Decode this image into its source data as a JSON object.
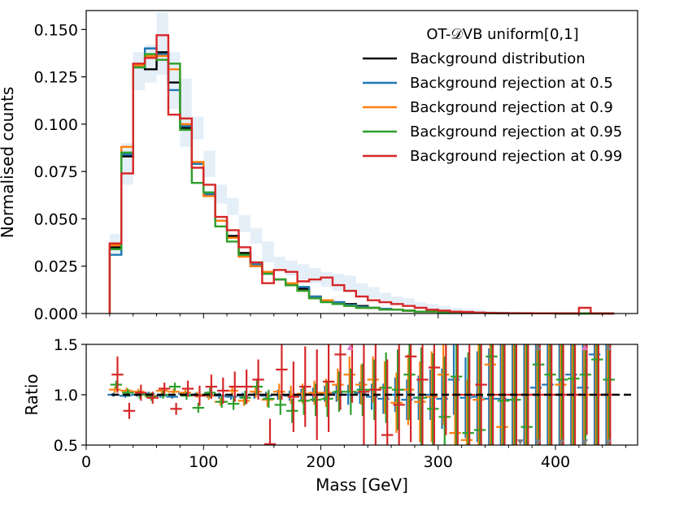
{
  "chart_data": {
    "type": "histogram",
    "xlabel": "Mass [GeV]",
    "xlim": [
      0,
      470
    ],
    "x_ticks": [
      "0",
      "100",
      "200",
      "300",
      "400"
    ],
    "bin_edges": [
      20,
      30,
      40,
      50,
      60,
      70,
      80,
      90,
      100,
      110,
      120,
      130,
      140,
      150,
      160,
      170,
      180,
      190,
      200,
      210,
      220,
      230,
      240,
      250,
      260,
      270,
      280,
      290,
      300,
      310,
      320,
      330,
      340,
      350,
      360,
      370,
      380,
      390,
      400,
      410,
      420,
      430,
      440,
      450
    ],
    "main": {
      "ylabel": "Normalised counts",
      "ylim": [
        0,
        0.16
      ],
      "y_ticks": [
        "0.000",
        "0.025",
        "0.050",
        "0.075",
        "0.100",
        "0.125",
        "0.150"
      ],
      "uncertainty_band": {
        "color": "#c6dbef",
        "lower": [
          0.032,
          0.068,
          0.118,
          0.122,
          0.126,
          0.108,
          0.088,
          0.092,
          0.072,
          0.058,
          0.052,
          0.043,
          0.037,
          0.027,
          0.024,
          0.02,
          0.018,
          0.016,
          0.014,
          0.012,
          0.011,
          0.009,
          0.008,
          0.006,
          0.005,
          0.004,
          0.003,
          0.0025,
          0.002,
          0.0015,
          0.001,
          0.0008,
          0.0005,
          0.0003,
          0.0002,
          0.0001,
          0.0001,
          0,
          0,
          0,
          0,
          0,
          0
        ],
        "upper": [
          0.042,
          0.09,
          0.138,
          0.142,
          0.159,
          0.138,
          0.124,
          0.104,
          0.086,
          0.068,
          0.061,
          0.052,
          0.045,
          0.038,
          0.03,
          0.028,
          0.026,
          0.024,
          0.022,
          0.021,
          0.02,
          0.016,
          0.014,
          0.011,
          0.009,
          0.008,
          0.006,
          0.005,
          0.004,
          0.003,
          0.0025,
          0.002,
          0.0015,
          0.001,
          0.0008,
          0.0006,
          0.0005,
          0.0004,
          0.0003,
          0.0003,
          0.0003,
          0.0003,
          0.0002
        ]
      }
    },
    "ratio": {
      "ylabel": "Ratio",
      "ylim": [
        0.5,
        1.5
      ],
      "y_ticks": [
        "0.5",
        "1.0",
        "1.5"
      ],
      "reference_line": 1.0
    },
    "legend": {
      "title": "OT-𝒟VB uniform[0,1]",
      "placement": "top-right"
    },
    "series": [
      {
        "name": "Background distribution",
        "color": "#000000",
        "values": [
          0.035,
          0.083,
          0.13,
          0.129,
          0.138,
          0.122,
          0.098,
          0.079,
          0.063,
          0.049,
          0.041,
          0.032,
          0.025,
          0.022,
          0.018,
          0.015,
          0.013,
          0.009,
          0.007,
          0.006,
          0.005,
          0.004,
          0.003,
          0.0025,
          0.002,
          0.0015,
          0.001,
          0.001,
          0.0007,
          0.0005,
          0.0004,
          0.0003,
          0.0002,
          0.0002,
          0.0001,
          0.0001,
          0.0001,
          0.0001,
          0,
          0,
          0,
          0,
          0
        ],
        "ratio": [
          1.0,
          1.0,
          1.0,
          1.0,
          1.0,
          1.0,
          1.0,
          1.0,
          1.0,
          1.0,
          1.0,
          1.0,
          1.0,
          1.0,
          1.0,
          1.0,
          1.0,
          1.0,
          1.0,
          1.0,
          1.0,
          1.0,
          1.0,
          1.0,
          1.0,
          1.0,
          1.0,
          1.0,
          1.0,
          1.0,
          1.0,
          1.0,
          1.0,
          1.0,
          1.0,
          1.0,
          1.0,
          1.0,
          1.0,
          1.0,
          1.0,
          1.0,
          1.0
        ],
        "ratio_err": [
          0,
          0,
          0,
          0,
          0,
          0,
          0,
          0,
          0,
          0,
          0,
          0,
          0,
          0,
          0,
          0,
          0,
          0,
          0,
          0,
          0,
          0,
          0,
          0,
          0,
          0,
          0,
          0,
          0,
          0,
          0,
          0,
          0,
          0,
          0,
          0,
          0,
          0,
          0,
          0,
          0,
          0,
          0
        ]
      },
      {
        "name": "Background rejection at 0.5",
        "color": "#1f77b4",
        "values": [
          0.031,
          0.084,
          0.131,
          0.14,
          0.137,
          0.118,
          0.099,
          0.079,
          0.063,
          0.049,
          0.04,
          0.031,
          0.026,
          0.021,
          0.018,
          0.016,
          0.014,
          0.009,
          0.007,
          0.006,
          0.0045,
          0.0035,
          0.003,
          0.0025,
          0.002,
          0.0015,
          0.001,
          0.001,
          0.0007,
          0.0005,
          0.0004,
          0.0003,
          0.0002,
          0.0002,
          0.0001,
          0.0001,
          0.0001,
          0.0001,
          0,
          0,
          0,
          0,
          0
        ],
        "ratio": [
          1.0,
          0.99,
          1.0,
          1.01,
          0.99,
          0.98,
          1.01,
          1.0,
          1.0,
          0.99,
          0.98,
          0.99,
          1.0,
          0.99,
          1.0,
          0.99,
          1.0,
          1.0,
          1.01,
          1.02,
          1.0,
          1.02,
          0.98,
          0.96,
          1.0,
          0.95,
          0.97,
          1.0,
          0.96,
          1.15,
          0.97,
          0.98,
          0.96,
          0.96,
          0.95,
          1.0,
          1.07,
          1.1,
          1.0,
          1.2,
          1.07,
          1.4,
          1.0
        ],
        "ratio_err": [
          0.02,
          0.02,
          0.02,
          0.02,
          0.02,
          0.02,
          0.02,
          0.02,
          0.03,
          0.03,
          0.03,
          0.03,
          0.04,
          0.04,
          0.05,
          0.05,
          0.06,
          0.07,
          0.08,
          0.09,
          0.1,
          0.11,
          0.13,
          0.15,
          0.17,
          0.2,
          0.22,
          0.25,
          0.3,
          0.35,
          0.4,
          0.45,
          0.5,
          0.6,
          0.7,
          0.8,
          0.9,
          0.9,
          0.9,
          0.9,
          0.9,
          0.9,
          0.9
        ]
      },
      {
        "name": "Background rejection at 0.9",
        "color": "#ff7f0e",
        "values": [
          0.036,
          0.088,
          0.131,
          0.136,
          0.136,
          0.129,
          0.1,
          0.08,
          0.062,
          0.049,
          0.04,
          0.03,
          0.025,
          0.022,
          0.018,
          0.016,
          0.012,
          0.008,
          0.007,
          0.005,
          0.004,
          0.003,
          0.003,
          0.002,
          0.002,
          0.0015,
          0.001,
          0.001,
          0.0006,
          0.0005,
          0.0003,
          0.0003,
          0.0002,
          0.0001,
          0.0001,
          0.0001,
          0.0001,
          0.0001,
          0,
          0,
          0,
          0,
          0
        ],
        "ratio": [
          1.05,
          1.04,
          1.03,
          0.99,
          1.04,
          1.03,
          1.02,
          1.0,
          0.99,
          0.93,
          1.04,
          0.94,
          1.03,
          0.95,
          1.03,
          1.0,
          1.01,
          1.02,
          1.02,
          1.1,
          1.2,
          1.1,
          1.15,
          1.07,
          0.92,
          1.05,
          0.93,
          0.98,
          1.2,
          0.62,
          0.55,
          0.95,
          1.3,
          0.68,
          1.0,
          1.0,
          1.0,
          1.0,
          1.1,
          1.0,
          1.0,
          1.0,
          1.0
        ],
        "ratio_err": [
          0.03,
          0.03,
          0.03,
          0.03,
          0.03,
          0.03,
          0.03,
          0.03,
          0.04,
          0.04,
          0.05,
          0.05,
          0.06,
          0.07,
          0.08,
          0.09,
          0.1,
          0.12,
          0.14,
          0.16,
          0.18,
          0.2,
          0.23,
          0.26,
          0.3,
          0.35,
          0.4,
          0.45,
          0.5,
          0.55,
          0.6,
          0.7,
          0.8,
          0.9,
          0.9,
          0.9,
          0.9,
          0.9,
          0.9,
          0.9,
          0.9,
          0.9,
          0.9
        ]
      },
      {
        "name": "Background rejection at 0.95",
        "color": "#2ca02c",
        "values": [
          0.034,
          0.085,
          0.13,
          0.137,
          0.134,
          0.132,
          0.097,
          0.069,
          0.064,
          0.046,
          0.038,
          0.031,
          0.027,
          0.021,
          0.018,
          0.015,
          0.012,
          0.008,
          0.006,
          0.005,
          0.004,
          0.003,
          0.003,
          0.002,
          0.002,
          0.0015,
          0.001,
          0.001,
          0.0006,
          0.0005,
          0.0003,
          0.0003,
          0.0002,
          0.0001,
          0.0001,
          0.0001,
          0.0001,
          0.0001,
          0,
          0,
          0,
          0,
          0
        ],
        "ratio": [
          1.1,
          1.02,
          1.0,
          0.98,
          1.0,
          1.08,
          0.99,
          0.87,
          1.02,
          0.93,
          0.91,
          0.97,
          1.08,
          0.96,
          0.9,
          0.84,
          0.94,
          0.95,
          0.96,
          1.03,
          1.03,
          1.05,
          1.05,
          1.07,
          1.05,
          1.2,
          0.97,
          0.86,
          0.78,
          1.18,
          0.62,
          0.65,
          1.38,
          0.94,
          0.95,
          0.68,
          1.3,
          1.2,
          1.15,
          1.16,
          1.2,
          1.35,
          1.15
        ],
        "ratio_err": [
          0.04,
          0.04,
          0.04,
          0.04,
          0.04,
          0.04,
          0.04,
          0.05,
          0.05,
          0.06,
          0.06,
          0.07,
          0.08,
          0.09,
          0.1,
          0.12,
          0.14,
          0.16,
          0.18,
          0.2,
          0.23,
          0.26,
          0.3,
          0.35,
          0.4,
          0.45,
          0.5,
          0.55,
          0.6,
          0.7,
          0.8,
          0.9,
          0.9,
          0.9,
          0.9,
          0.9,
          0.9,
          0.9,
          0.9,
          0.9,
          0.9,
          0.9,
          0.9
        ]
      },
      {
        "name": "Background rejection at 0.99",
        "color": "#d62728",
        "values": [
          0.037,
          0.074,
          0.132,
          0.135,
          0.147,
          0.105,
          0.103,
          0.077,
          0.068,
          0.051,
          0.044,
          0.035,
          0.027,
          0.016,
          0.023,
          0.022,
          0.017,
          0.018,
          0.019,
          0.015,
          0.012,
          0.009,
          0.007,
          0.006,
          0.005,
          0.004,
          0.003,
          0.002,
          0.0015,
          0.001,
          0.0008,
          0.0005,
          0.0003,
          0.0002,
          0.0002,
          0.0002,
          0.0001,
          0.0001,
          0.0001,
          0.0001,
          0.003,
          0.0001,
          0
        ],
        "ratio": [
          1.2,
          0.84,
          1.02,
          0.97,
          1.06,
          0.86,
          1.06,
          0.99,
          1.08,
          1.04,
          1.08,
          1.08,
          1.15,
          0.51,
          1.25,
          0.98,
          1.08,
          1.0,
          1.13,
          1.4,
          1.52,
          1.03,
          1.05,
          0.6,
          0.9,
          1.38,
          1.15,
          1.27,
          1.5,
          1.0,
          1.0,
          1.1,
          1.0,
          1.0,
          1.0,
          1.0,
          1.0,
          1.0,
          1.0,
          1.0,
          1.5,
          1.0,
          1.0
        ],
        "ratio_err": [
          0.18,
          0.08,
          0.08,
          0.06,
          0.06,
          0.06,
          0.08,
          0.1,
          0.12,
          0.13,
          0.15,
          0.17,
          0.2,
          0.25,
          0.3,
          0.35,
          0.4,
          0.45,
          0.5,
          0.55,
          0.6,
          0.65,
          0.7,
          0.75,
          0.8,
          0.85,
          0.9,
          0.9,
          0.9,
          0.9,
          0.9,
          0.9,
          0.9,
          0.9,
          0.9,
          0.9,
          0.9,
          0.9,
          0.9,
          0.9,
          0.9,
          0.9,
          0.9
        ]
      }
    ]
  }
}
